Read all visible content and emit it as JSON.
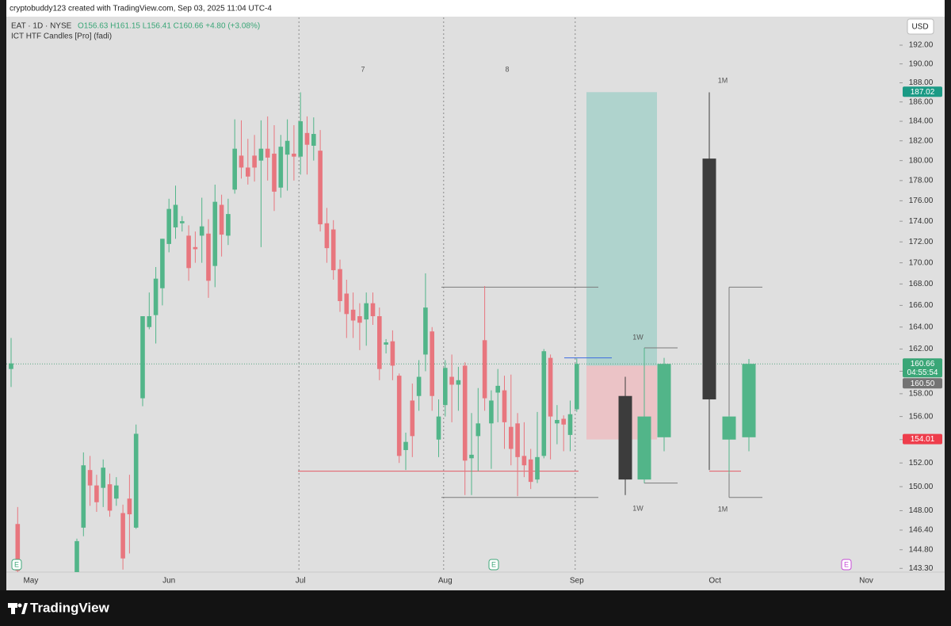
{
  "header": {
    "text": "cryptobuddy123 created with TradingView.com, Sep 03, 2025 11:04 UTC-4"
  },
  "legend": {
    "symbol": "EAT · 1D · NYSE",
    "ohlc": "O156.63 H161.15 L156.41 C160.66 +4.80 (+3.08%)",
    "indicator": "ICT HTF Candles [Pro] (fadi)"
  },
  "currency": "USD",
  "footer": {
    "brand": "TradingView"
  },
  "chart_data": {
    "type": "candlestick",
    "log_scale": true,
    "up_color": "#52b589",
    "down_color": "#e8767e",
    "ylim": [
      143,
      195
    ],
    "yticks": [
      {
        "value": 143.3,
        "label": "143.30"
      },
      {
        "value": 144.8,
        "label": "144.80"
      },
      {
        "value": 146.4,
        "label": "146.40"
      },
      {
        "value": 148,
        "label": "148.00"
      },
      {
        "value": 150,
        "label": "150.00"
      },
      {
        "value": 152,
        "label": "152.00"
      },
      {
        "value": 154,
        "label": "154.00"
      },
      {
        "value": 156,
        "label": "156.00"
      },
      {
        "value": 158,
        "label": "158.00"
      },
      {
        "value": 160,
        "label": "160.00"
      },
      {
        "value": 162,
        "label": "162.00"
      },
      {
        "value": 164,
        "label": "164.00"
      },
      {
        "value": 166,
        "label": "166.00"
      },
      {
        "value": 168,
        "label": "168.00"
      },
      {
        "value": 170,
        "label": "170.00"
      },
      {
        "value": 172,
        "label": "172.00"
      },
      {
        "value": 174,
        "label": "174.00"
      },
      {
        "value": 176,
        "label": "176.00"
      },
      {
        "value": 178,
        "label": "178.00"
      },
      {
        "value": 180,
        "label": "180.00"
      },
      {
        "value": 182,
        "label": "182.00"
      },
      {
        "value": 184,
        "label": "184.00"
      },
      {
        "value": 186,
        "label": "186.00"
      },
      {
        "value": 188,
        "label": "188.00"
      },
      {
        "value": 190,
        "label": "190.00"
      },
      {
        "value": 192,
        "label": "192.00"
      }
    ],
    "categories": [
      null,
      null,
      null,
      "May",
      null,
      null,
      null,
      null,
      null,
      null,
      null,
      null,
      null,
      null,
      null,
      null,
      null,
      null,
      null,
      null,
      null,
      null,
      null,
      null,
      "Jun",
      null,
      null,
      null,
      null,
      null,
      null,
      null,
      null,
      null,
      null,
      null,
      null,
      null,
      null,
      null,
      null,
      null,
      null,
      null,
      "Jul",
      null,
      null,
      null,
      null,
      null,
      null,
      null,
      null,
      null,
      null,
      null,
      null,
      null,
      null,
      null,
      null,
      null,
      null,
      null,
      null,
      null,
      "Aug",
      null,
      null,
      null,
      null,
      null,
      null,
      null,
      null,
      null,
      null,
      null,
      null,
      null,
      null,
      null,
      null,
      null,
      null,
      null,
      "Sep",
      null,
      null,
      null,
      null,
      null,
      null,
      null,
      null,
      null,
      null,
      null,
      null,
      null,
      null,
      null,
      null,
      null,
      null,
      null,
      null,
      "Oct",
      null,
      null,
      null,
      null,
      null,
      null,
      null,
      null,
      null,
      null,
      null,
      null,
      null,
      null,
      null,
      null,
      null,
      null,
      null,
      null,
      null,
      null,
      "Nov"
    ],
    "open": [
      160.2,
      146.9,
      null,
      null,
      null,
      null,
      null,
      null,
      null,
      null,
      143,
      146.6,
      151.4,
      150.1,
      149.9,
      150.2,
      149,
      147.8,
      149,
      146.6,
      157.6,
      164,
      165.1,
      167.6,
      171.8,
      173.4,
      173.8,
      172.6,
      171.5,
      172.6,
      172.8,
      169.7,
      175.6,
      172.6,
      177.1,
      180.5,
      179.3,
      180.5,
      180,
      181.2,
      180.7,
      177.3,
      180.6,
      180.7,
      180.4,
      182.8,
      181.5,
      181,
      173.8,
      173.2,
      169.4,
      167.1,
      165.6,
      165,
      164.7,
      166.2,
      165,
      162.4,
      162.7,
      159.6,
      153.1,
      157.4,
      157.8,
      161.5,
      163.6,
      154,
      157,
      159.5,
      158.8,
      160.5,
      152.4,
      154.3,
      162.8,
      155.4,
      158.1,
      158.3,
      155.1,
      155.4,
      152.6,
      152.3,
      150.6,
      152.6,
      161.2,
      155.4,
      155.8,
      154.4,
      156.63,
      null,
      null,
      null,
      null,
      null,
      null,
      null,
      null,
      null,
      null,
      null,
      null,
      null,
      null,
      null,
      null,
      null,
      null,
      null,
      null,
      null,
      null,
      null,
      null,
      null,
      null,
      null,
      null,
      null,
      null,
      null,
      null,
      null,
      null,
      null,
      null,
      null,
      null,
      null,
      null,
      null,
      null,
      null,
      null
    ],
    "high": [
      163,
      148.3,
      null,
      null,
      null,
      null,
      null,
      null,
      null,
      null,
      145.7,
      152.9,
      152.6,
      151,
      152.3,
      151.1,
      150.8,
      148.5,
      151,
      155.3,
      165,
      167.2,
      169.6,
      172.3,
      176.2,
      177.5,
      174.5,
      173.6,
      173,
      176.3,
      174.2,
      177.6,
      176.6,
      176.2,
      184.2,
      184.1,
      182.2,
      182.6,
      184.1,
      184.5,
      183.6,
      182.6,
      184.2,
      183.6,
      187,
      184.5,
      184.4,
      183.1,
      175.3,
      174.1,
      170.3,
      168.4,
      167.2,
      166.2,
      167.2,
      167.2,
      165.8,
      162.9,
      163.7,
      159.8,
      154.6,
      158.9,
      161,
      169,
      164,
      157.5,
      161,
      161.5,
      160.4,
      160.8,
      156.3,
      158.5,
      167.8,
      158.3,
      160.2,
      159.6,
      159.7,
      156.3,
      155.5,
      153.2,
      156.4,
      162,
      161.5,
      157,
      156.1,
      157.4,
      161.15,
      null,
      null,
      null,
      null,
      null,
      null,
      null,
      null,
      null,
      null,
      null,
      null,
      null,
      null,
      null,
      null,
      null,
      null,
      null,
      null,
      null,
      null,
      null,
      null,
      null,
      null,
      null,
      null,
      null,
      null,
      null,
      null,
      null,
      null,
      null,
      null,
      null,
      null,
      null,
      null,
      null,
      null,
      null,
      null
    ],
    "low": [
      158.6,
      143,
      null,
      null,
      null,
      null,
      null,
      null,
      null,
      null,
      142.6,
      145.9,
      148.4,
      147.9,
      148.3,
      147.5,
      148.4,
      143.2,
      144.5,
      146.5,
      156.9,
      163.8,
      162.5,
      166,
      171,
      172.3,
      173,
      168.3,
      170,
      170,
      166.7,
      167.7,
      170.6,
      171.7,
      176.7,
      178.2,
      177.6,
      177.9,
      171.5,
      178,
      175,
      176.3,
      177,
      178,
      178.6,
      178.6,
      180,
      173,
      170,
      168.4,
      165.4,
      163,
      163,
      161.9,
      162.3,
      164.2,
      159.2,
      161.6,
      159.2,
      152,
      151.4,
      152.5,
      156.5,
      160,
      156.5,
      152.5,
      156,
      155.5,
      156.5,
      149.3,
      149.3,
      151.3,
      156.5,
      151.5,
      155.5,
      153.2,
      151.8,
      149.2,
      150.8,
      149.8,
      150.3,
      152.4,
      152.3,
      153.6,
      153,
      153,
      156.41,
      null,
      null,
      null,
      null,
      null,
      null,
      null,
      null,
      null,
      null,
      null,
      null,
      null,
      null,
      null,
      null,
      null,
      null,
      null,
      null,
      null,
      null,
      null,
      null,
      null,
      null,
      null,
      null,
      null,
      null,
      null,
      null,
      null,
      null,
      null,
      null,
      null,
      null,
      null,
      null,
      null,
      null,
      null,
      null
    ],
    "close": [
      160.7,
      143.1,
      null,
      null,
      null,
      null,
      null,
      null,
      null,
      null,
      145.5,
      151.8,
      150.1,
      148.7,
      151.6,
      148,
      150.1,
      144.1,
      147.7,
      154.5,
      165,
      165,
      168.5,
      172.3,
      175.2,
      175.6,
      174,
      169.5,
      171.3,
      173.5,
      168.3,
      175.9,
      172.7,
      174.7,
      181.2,
      179.3,
      178.4,
      179.3,
      181.2,
      180.3,
      176.9,
      181.4,
      182,
      180.4,
      184,
      181.6,
      182.7,
      173.7,
      171.4,
      169.3,
      166.4,
      165.2,
      164.6,
      164.4,
      166.2,
      165,
      160.2,
      162.6,
      160.5,
      152.6,
      153.8,
      154.3,
      159.5,
      165.8,
      157.8,
      156,
      160.3,
      158.8,
      159.2,
      152.2,
      152.7,
      155.4,
      157.6,
      157.4,
      158.7,
      155.5,
      153.2,
      152.5,
      151.8,
      150.4,
      152.5,
      161.8,
      156,
      155.7,
      155.3,
      156.2,
      160.66,
      null,
      null,
      null,
      null,
      null,
      null,
      null,
      null,
      null,
      null,
      null,
      null,
      null,
      null,
      null,
      null,
      null,
      null,
      null,
      null,
      null,
      null,
      null,
      null,
      null,
      null,
      null,
      null,
      null,
      null,
      null,
      null,
      null,
      null,
      null,
      null,
      null,
      null,
      null,
      null,
      null,
      null,
      null,
      null
    ],
    "htf": [
      {
        "label": "1W",
        "up_color": "#52b589",
        "down_color": "#3c3c3c",
        "open": [
          157.8,
          150.6,
          154.2
        ],
        "high": [
          159.5,
          162.1,
          161.2
        ],
        "low": [
          149.3,
          150.3,
          153
        ],
        "close": [
          150.6,
          156,
          160.66
        ]
      },
      {
        "label": "1M",
        "up_color": "#52b589",
        "down_color": "#3c3c3c",
        "open": [
          180.2,
          154,
          154.2
        ],
        "high": [
          187,
          156.1,
          161.1
        ],
        "low": [
          151.4,
          151.1,
          153
        ],
        "close": [
          157.5,
          156,
          160.66
        ]
      }
    ],
    "zones": [
      {
        "top": 187.02,
        "bottom": 160.5,
        "color": "#9fcfc7"
      },
      {
        "top": 160.5,
        "bottom": 154.01,
        "color": "#efb9bd"
      }
    ],
    "levels": [
      {
        "value": 167.7,
        "color": "#7b7b7b"
      },
      {
        "value": 149.1,
        "color": "#7b7b7b"
      },
      {
        "value": 151.3,
        "color": "#e25c64"
      },
      {
        "value": 161.2,
        "color": "#3d6be0"
      },
      {
        "value": 162.1,
        "color": "#7b7b7b"
      },
      {
        "value": 150.3,
        "color": "#7b7b7b"
      }
    ],
    "annotations": [
      "7",
      "8",
      "1W",
      "1W",
      "1M",
      "1M"
    ],
    "events": [
      {
        "label": "E",
        "color": "#3fa77a"
      },
      {
        "label": "E",
        "color": "#3fa77a"
      },
      {
        "label": "E",
        "color": "#c64bd6"
      }
    ],
    "price_markers": [
      {
        "value": 187.02,
        "label": "187.02",
        "color": "#1b9a85"
      },
      {
        "value": 160.66,
        "label": "160.66",
        "sublabel": "04:55:54",
        "color": "#3aa677"
      },
      {
        "value": 160.5,
        "label": "160.50",
        "color": "#737373"
      },
      {
        "value": 154.01,
        "label": "154.01",
        "color": "#ee3d4b"
      }
    ]
  }
}
